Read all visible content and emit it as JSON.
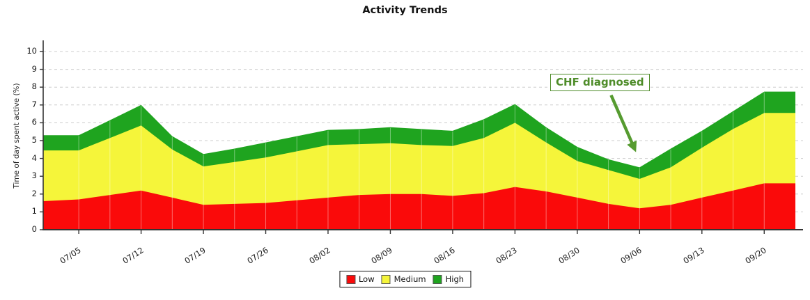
{
  "chart_data": {
    "type": "area",
    "stacked": true,
    "title": "Activity Trends",
    "xlabel": "",
    "ylabel": "Time of day spent active (%)",
    "ylim": [
      0,
      10
    ],
    "y_ticks": [
      0,
      1,
      2,
      3,
      4,
      5,
      6,
      7,
      8,
      9,
      10
    ],
    "grid": "horizontal-dashed",
    "legend_position": "bottom-center",
    "x_days": [
      0,
      4,
      7.5,
      11,
      14.5,
      18,
      21.5,
      25,
      28.5,
      32,
      35.5,
      39,
      42.5,
      46,
      49.5,
      53,
      56.5,
      60,
      63.5,
      67,
      70.5,
      74,
      77.5,
      81,
      84.5
    ],
    "x_tick_days": [
      4,
      11,
      18,
      25,
      32,
      39,
      46,
      53,
      60,
      67,
      74,
      81
    ],
    "x_tick_labels": [
      "07/05",
      "07/12",
      "07/19",
      "07/26",
      "08/02",
      "08/09",
      "08/16",
      "08/23",
      "08/30",
      "09/06",
      "09/13",
      "09/20"
    ],
    "series": [
      {
        "name": "Low",
        "color": "#fa0a0a",
        "values": [
          1.6,
          1.7,
          1.95,
          2.2,
          1.8,
          1.4,
          1.45,
          1.5,
          1.65,
          1.8,
          1.95,
          2.0,
          2.0,
          1.9,
          2.05,
          2.4,
          2.15,
          1.8,
          1.45,
          1.2,
          1.4,
          1.8,
          2.2,
          2.6,
          2.6
        ]
      },
      {
        "name": "Medium",
        "color": "#f5f53a",
        "values": [
          2.85,
          2.75,
          3.2,
          3.65,
          2.7,
          2.15,
          2.35,
          2.55,
          2.75,
          2.95,
          2.85,
          2.85,
          2.75,
          2.8,
          3.1,
          3.6,
          2.75,
          2.05,
          1.9,
          1.65,
          2.1,
          2.8,
          3.45,
          3.95,
          3.95
        ]
      },
      {
        "name": "High",
        "color": "#1fa41f",
        "values": [
          0.85,
          0.85,
          1.0,
          1.15,
          0.75,
          0.7,
          0.75,
          0.85,
          0.85,
          0.85,
          0.85,
          0.9,
          0.9,
          0.85,
          1.05,
          1.05,
          0.85,
          0.8,
          0.6,
          0.65,
          1.05,
          0.95,
          1.0,
          1.2,
          1.2
        ]
      }
    ],
    "annotation": {
      "text": "CHF diagnosed",
      "color": "#4e8c29",
      "arrow_color": "#569b30",
      "arrow_start_day": 63.8,
      "arrow_start_value": 7.55,
      "arrow_tip_day": 66.6,
      "arrow_tip_value": 4.35
    },
    "axis_color": "#333333",
    "gridline_color": "#cccccc"
  }
}
